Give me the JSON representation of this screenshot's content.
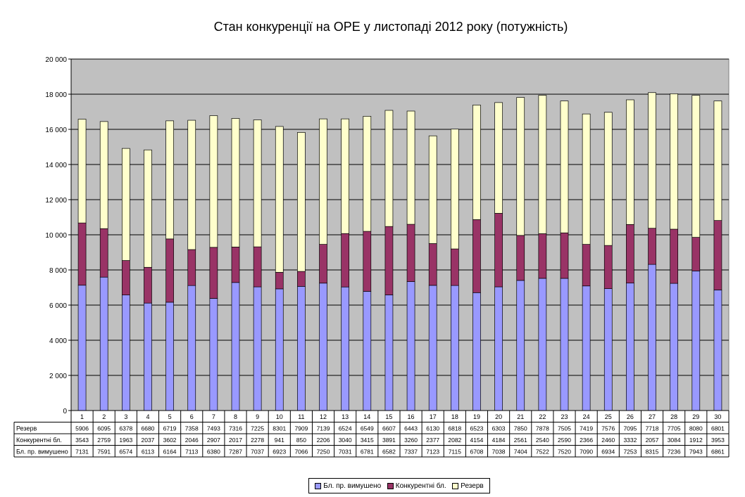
{
  "chart_data": {
    "type": "bar",
    "stacked": true,
    "title": "Стан конкуренції на ОРЕ  у листопаді 2012 року (потужність)",
    "categories": [
      "1",
      "2",
      "3",
      "4",
      "5",
      "6",
      "7",
      "8",
      "9",
      "10",
      "11",
      "12",
      "13",
      "14",
      "15",
      "16",
      "17",
      "18",
      "19",
      "20",
      "21",
      "22",
      "23",
      "24",
      "25",
      "26",
      "27",
      "28",
      "29",
      "30"
    ],
    "ylim": [
      0,
      20000
    ],
    "yticks": [
      "0",
      "2 000",
      "4 000",
      "6 000",
      "8 000",
      "10 000",
      "12 000",
      "14 000",
      "16 000",
      "18 000",
      "20 000"
    ],
    "grid": true,
    "plot_background": "#c0c0c0",
    "legend_position": "bottom",
    "series": [
      {
        "name": "Бл. пр. вимушено",
        "color": "#9999ff",
        "values": [
          7131,
          7591,
          6574,
          6113,
          6164,
          7113,
          6380,
          7287,
          7037,
          6923,
          7066,
          7250,
          7031,
          6781,
          6582,
          7337,
          7123,
          7115,
          6708,
          7038,
          7404,
          7522,
          7520,
          7090,
          6934,
          7253,
          8315,
          7236,
          7943,
          6861
        ]
      },
      {
        "name": "Конкурентні бл.",
        "color": "#993366",
        "values": [
          3543,
          2759,
          1963,
          2037,
          3602,
          2046,
          2907,
          2017,
          2278,
          941,
          850,
          2206,
          3040,
          3415,
          3891,
          3260,
          2377,
          2082,
          4154,
          4184,
          2561,
          2540,
          2590,
          2366,
          2460,
          3332,
          2057,
          3084,
          1912,
          3953
        ]
      },
      {
        "name": "Резерв",
        "color": "#ffffcc",
        "values": [
          5906,
          6095,
          6378,
          6680,
          6719,
          7358,
          7493,
          7316,
          7225,
          8301,
          7909,
          7139,
          6524,
          6549,
          6607,
          6443,
          6130,
          6818,
          6523,
          6303,
          7850,
          7878,
          7505,
          7419,
          7576,
          7095,
          7718,
          7705,
          8080,
          6801
        ]
      }
    ],
    "table_rows": [
      {
        "label": "Резерв",
        "series_index": 2
      },
      {
        "label": "Конкурентні бл.",
        "series_index": 1
      },
      {
        "label": "Бл. пр. вимушено",
        "series_index": 0
      }
    ],
    "legend_order": [
      0,
      1,
      2
    ]
  }
}
